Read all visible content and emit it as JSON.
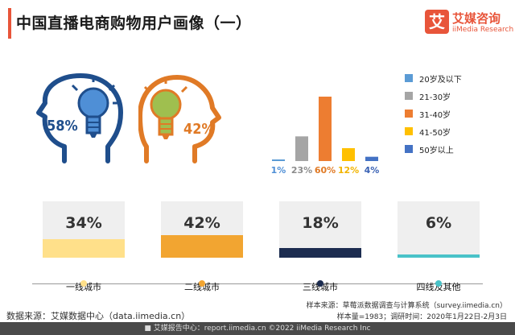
{
  "title": "中国直播电商购物用户画像（一）",
  "brand": {
    "icon_char": "艾",
    "name": "艾媒咨询",
    "name_en": "iiMedia Research",
    "color": "#e8553a"
  },
  "gender": {
    "male": {
      "percent": "58%",
      "color": "#1f4e8c",
      "bulb_color": "#4f8fd6",
      "icon": "male-head-bulb-icon"
    },
    "female": {
      "percent": "42%",
      "color": "#e07a26",
      "bulb_color": "#9fbf4f",
      "icon": "female-head-bulb-icon"
    }
  },
  "chart_data": [
    {
      "type": "bar",
      "categories": [
        "20岁及以下",
        "21-30岁",
        "31-40岁",
        "41-50岁",
        "50岁以上"
      ],
      "values": [
        1,
        23,
        60,
        12,
        4
      ],
      "value_labels": [
        "1%",
        "23%",
        "60%",
        "12%",
        "4%"
      ],
      "colors": [
        "#5b9bd5",
        "#a5a5a5",
        "#ed7d31",
        "#ffc000",
        "#4472c4"
      ],
      "label_colors": [
        "#4f8fd6",
        "#8c8c8c",
        "#e07a26",
        "#f2b400",
        "#3a62b4"
      ],
      "legend": "right",
      "ylim": [
        0,
        60
      ]
    },
    {
      "type": "bar",
      "categories": [
        "一线城市",
        "二线城市",
        "三线城市",
        "四线及其他"
      ],
      "values": [
        34,
        42,
        18,
        6
      ],
      "value_labels": [
        "34%",
        "42%",
        "18%",
        "6%"
      ],
      "colors": [
        "#ffe08a",
        "#f2a531",
        "#1c2c50",
        "#49c2c8"
      ]
    }
  ],
  "source": "数据来源：艾媒数据中心（data.iimedia.cn）",
  "sample_source": "样本来源：草莓派数据调查与计算系统（survey.iimedia.cn）",
  "sample_info": "样本量=1983；调研时间：2020年1月22日-2月3日",
  "footer": "艾媒报告中心：report.iimedia.cn   ©2022  iiMedia Research  Inc"
}
